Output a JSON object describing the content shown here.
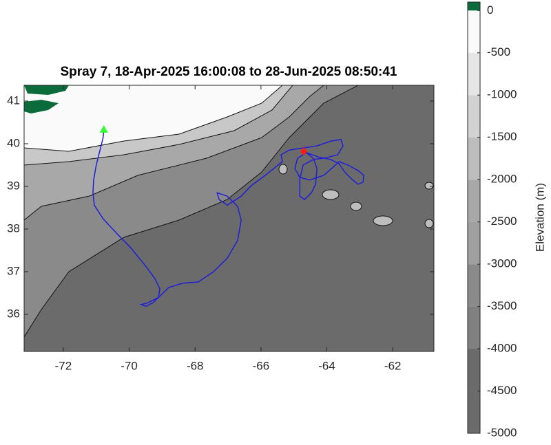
{
  "chart_data": {
    "type": "map",
    "title": "Spray 7, 18-Apr-2025 16:00:08 to 28-Jun-2025 08:50:41",
    "xlim": [
      -73.19,
      -60.75
    ],
    "ylim": [
      35.13,
      41.37
    ],
    "xticks": [
      -72,
      -70,
      -68,
      -66,
      -64,
      -62
    ],
    "yticks": [
      36,
      37,
      38,
      39,
      40,
      41
    ],
    "track": {
      "color": "#1f1fd6",
      "start_color": "#33ff33",
      "end_color": "#ff1a1a",
      "x": [
        -70.77,
        -70.79,
        -70.87,
        -71.0,
        -71.08,
        -71.1,
        -71.06,
        -70.79,
        -70.37,
        -69.95,
        -69.53,
        -69.22,
        -69.07,
        -69.11,
        -69.43,
        -69.64,
        -69.49,
        -69.28,
        -69.01,
        -68.8,
        -68.38,
        -67.9,
        -67.44,
        -67.02,
        -66.71,
        -66.6,
        -66.71,
        -67.02,
        -67.33,
        -67.27,
        -67.02,
        -66.6,
        -66.29,
        -65.87,
        -65.56,
        -65.35,
        -65.39,
        -65.14,
        -64.72,
        -64.3,
        -63.88,
        -63.57,
        -63.51,
        -63.67,
        -64.09,
        -64.41,
        -64.72,
        -64.82,
        -64.82,
        -64.68,
        -64.47,
        -64.34,
        -64.3,
        -64.41,
        -64.62,
        -64.89,
        -64.97,
        -64.82,
        -64.51,
        -64.09,
        -63.78,
        -63.63,
        -63.36,
        -63.05,
        -62.88,
        -62.9,
        -63.05,
        -63.26,
        -63.46,
        -63.63,
        -63.88,
        -64.26,
        -64.62,
        -64.7
      ],
      "y": [
        40.34,
        40.15,
        39.9,
        39.5,
        39.15,
        38.85,
        38.56,
        38.24,
        37.89,
        37.56,
        37.16,
        36.84,
        36.6,
        36.4,
        36.27,
        36.23,
        36.19,
        36.27,
        36.47,
        36.63,
        36.73,
        36.76,
        37.0,
        37.32,
        37.73,
        38.21,
        38.53,
        38.77,
        38.85,
        38.69,
        38.56,
        38.77,
        39.02,
        39.26,
        39.45,
        39.58,
        39.74,
        39.85,
        39.9,
        39.95,
        40.06,
        40.1,
        39.95,
        39.74,
        39.66,
        39.63,
        39.5,
        39.18,
        38.77,
        38.69,
        38.85,
        39.05,
        39.42,
        39.66,
        39.79,
        39.66,
        39.42,
        39.21,
        39.15,
        39.26,
        39.47,
        39.58,
        39.5,
        39.37,
        39.26,
        39.1,
        39.05,
        39.18,
        39.34,
        39.53,
        39.63,
        39.69,
        39.79,
        39.82
      ]
    },
    "colorbar": {
      "label": "Elevation (m)",
      "lim": [
        -5000,
        100
      ],
      "ticks": [
        -5000,
        -4500,
        -4000,
        -3500,
        -3000,
        -2500,
        -2000,
        -1500,
        -1000,
        -500,
        0
      ],
      "colors": [
        "#6b6b6b",
        "#6b6b6b",
        "#808080",
        "#8a8a8a",
        "#a0a0a0",
        "#a8a8a8",
        "#bdbdbd",
        "#d2d2d2",
        "#e6e6e6",
        "#fafafa",
        "#0b6b3a"
      ]
    }
  }
}
